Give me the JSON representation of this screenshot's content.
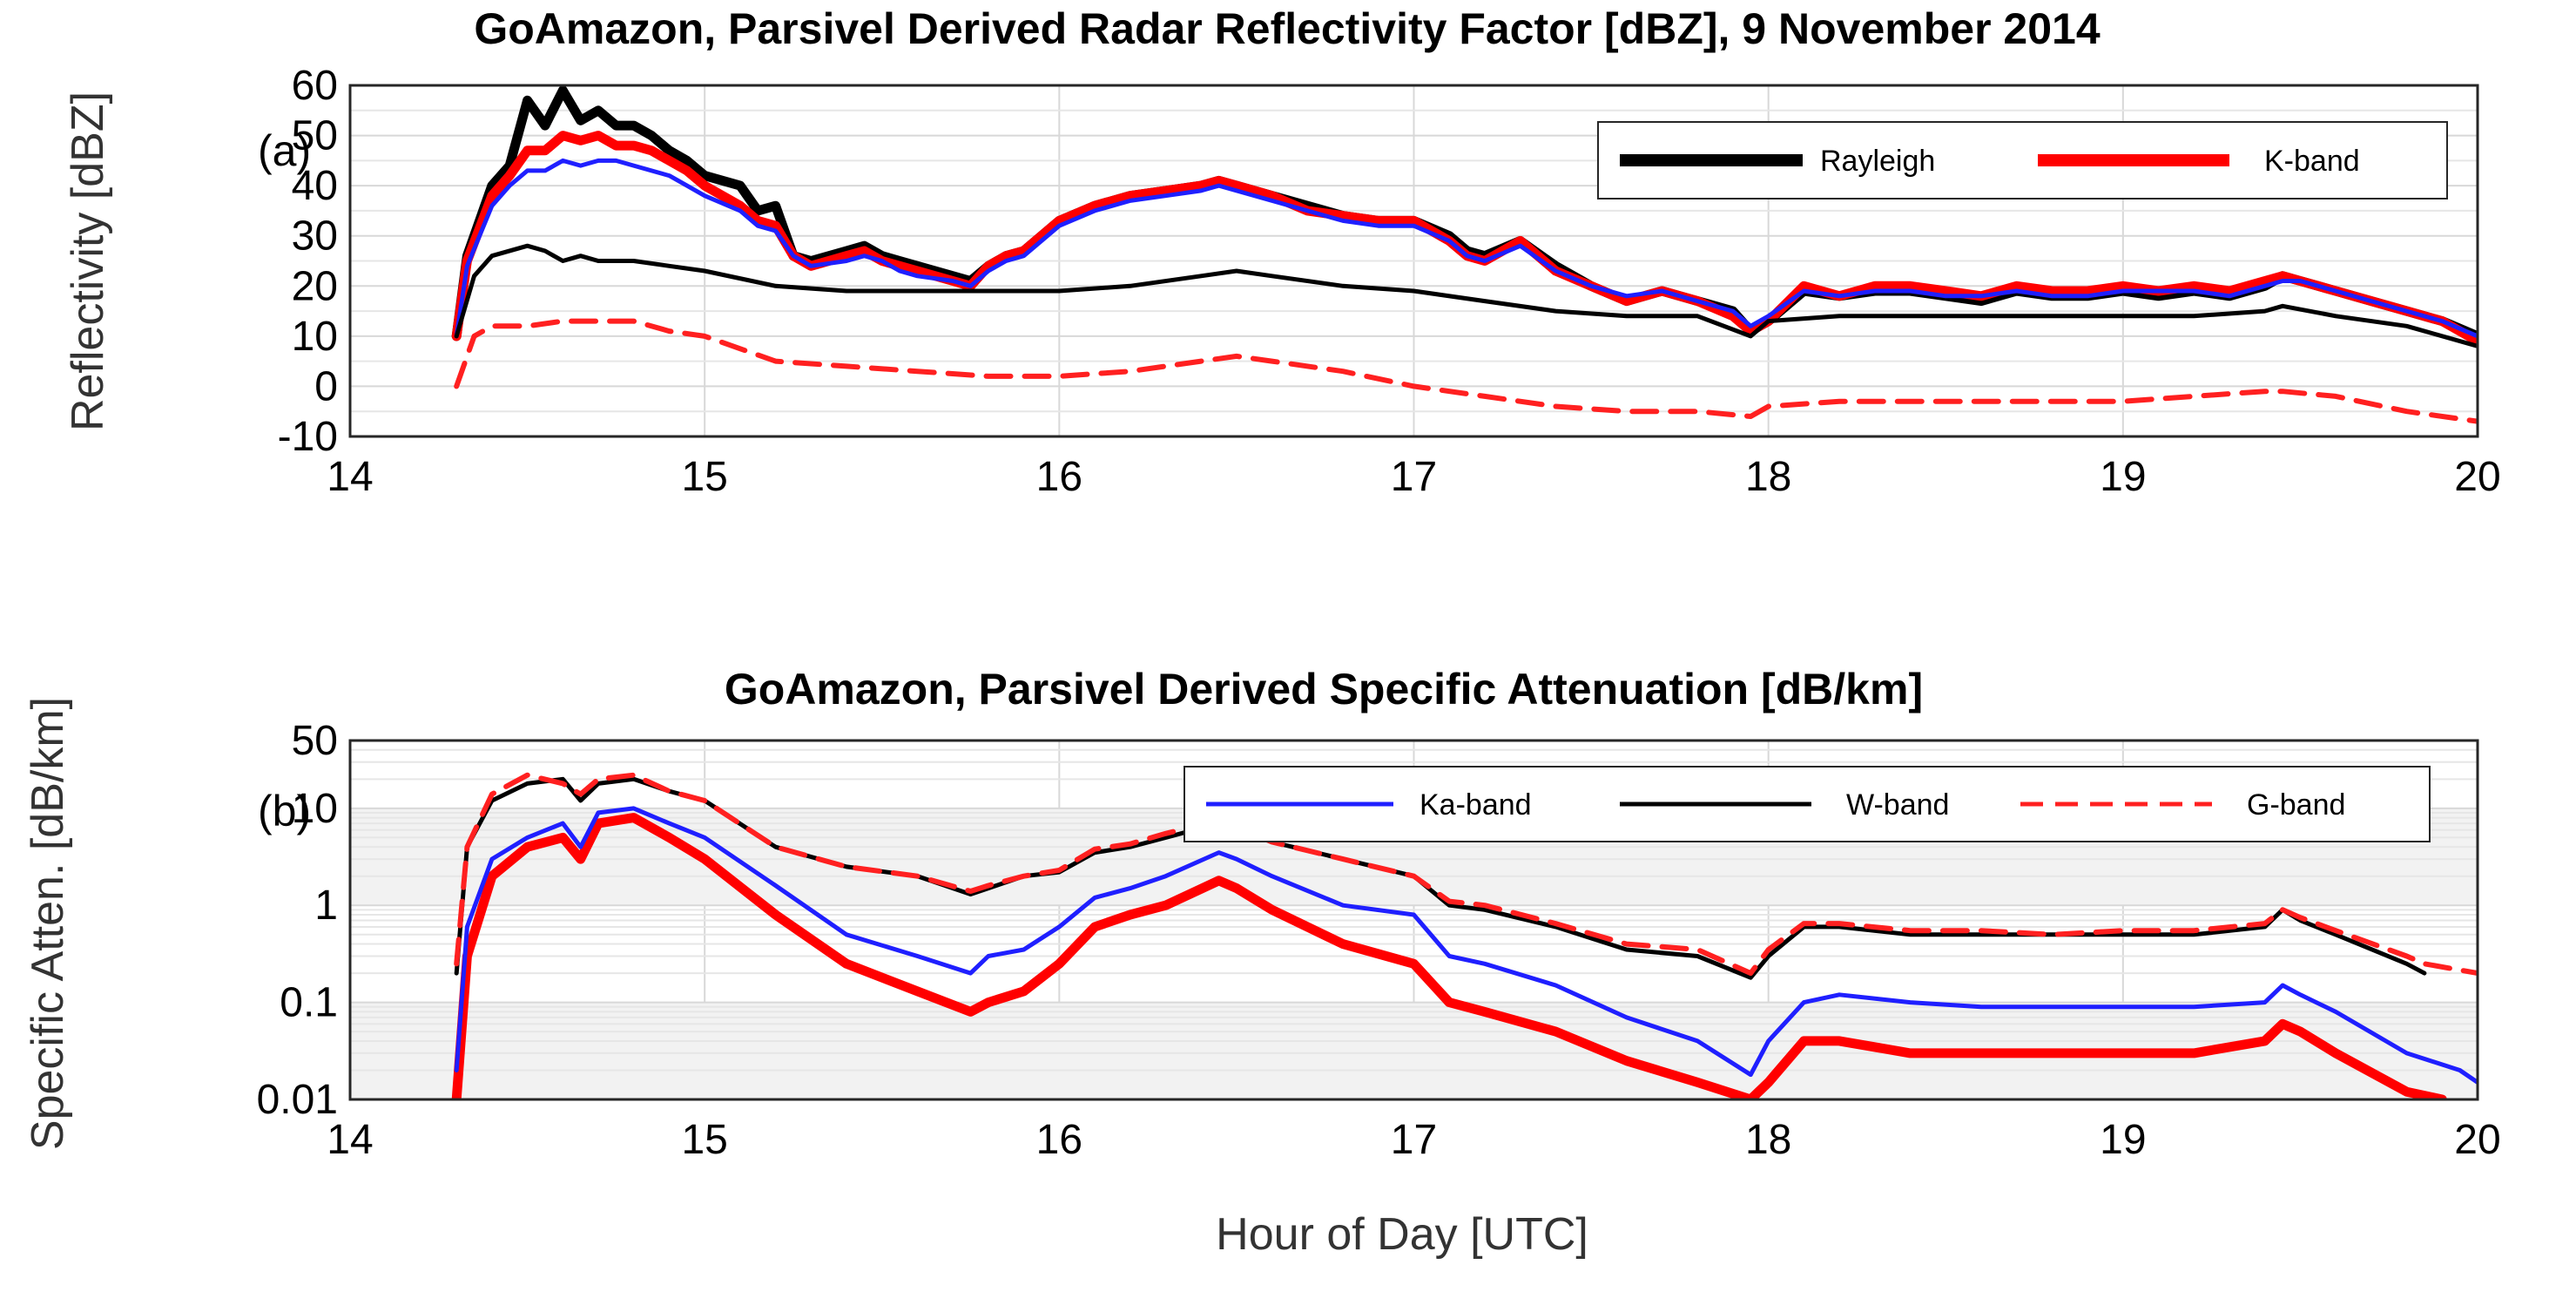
{
  "chart_data": [
    {
      "type": "line",
      "panel_label": "(a)",
      "title": "GoAmazon, Parsivel Derived Radar Reflectivity Factor [dBZ], 9 November 2014",
      "xlabel": "",
      "ylabel": "Reflectivity [dBZ]",
      "xlim": [
        14,
        20
      ],
      "ylim": [
        -10,
        60
      ],
      "xticks": [
        "14",
        "15",
        "16",
        "17",
        "18",
        "19",
        "20"
      ],
      "yticks": [
        "-10",
        "0",
        "10",
        "20",
        "30",
        "40",
        "50",
        "60"
      ],
      "grid": true,
      "legend": {
        "position": "top-right",
        "entries": [
          "Rayleigh",
          "K-band"
        ]
      },
      "series": [
        {
          "name": "Rayleigh",
          "color": "#000000",
          "style": "solid-thick",
          "x": [
            14.3,
            14.33,
            14.4,
            14.45,
            14.5,
            14.55,
            14.6,
            14.65,
            14.7,
            14.75,
            14.8,
            14.85,
            14.9,
            14.95,
            15.0,
            15.1,
            15.15,
            15.2,
            15.25,
            15.3,
            15.4,
            15.45,
            15.5,
            15.55,
            15.6,
            15.7,
            15.75,
            15.8,
            15.85,
            15.9,
            16.0,
            16.1,
            16.2,
            16.3,
            16.4,
            16.45,
            16.5,
            16.6,
            16.7,
            16.8,
            16.9,
            17.0,
            17.1,
            17.15,
            17.2,
            17.3,
            17.4,
            17.5,
            17.6,
            17.7,
            17.8,
            17.9,
            17.95,
            18.0,
            18.1,
            18.2,
            18.3,
            18.4,
            18.5,
            18.6,
            18.7,
            18.8,
            18.9,
            19.0,
            19.1,
            19.2,
            19.3,
            19.4,
            19.45,
            19.5,
            19.6,
            19.7,
            19.8,
            19.9,
            20.0
          ],
          "values": [
            10,
            26,
            40,
            44,
            57,
            52,
            59,
            53,
            55,
            52,
            52,
            50,
            47,
            45,
            42,
            40,
            35,
            36,
            26,
            25,
            27,
            28,
            26,
            25,
            24,
            22,
            21,
            24,
            26,
            27,
            33,
            36,
            38,
            39,
            40,
            41,
            40,
            38,
            36,
            34,
            33,
            33,
            30,
            27,
            26,
            29,
            24,
            20,
            17,
            19,
            17,
            15,
            11,
            13,
            19,
            18,
            19,
            19,
            18,
            17,
            19,
            18,
            18,
            19,
            18,
            19,
            18,
            20,
            22,
            21,
            19,
            17,
            15,
            13,
            10
          ]
        },
        {
          "name": "K-band",
          "color": "#ff0000",
          "style": "solid-thick",
          "x": [
            14.3,
            14.33,
            14.4,
            14.45,
            14.5,
            14.55,
            14.6,
            14.65,
            14.7,
            14.75,
            14.8,
            14.85,
            14.9,
            14.95,
            15.0,
            15.1,
            15.15,
            15.2,
            15.25,
            15.3,
            15.4,
            15.45,
            15.5,
            15.55,
            15.6,
            15.7,
            15.75,
            15.8,
            15.85,
            15.9,
            16.0,
            16.1,
            16.2,
            16.3,
            16.4,
            16.45,
            16.5,
            16.6,
            16.7,
            16.8,
            16.9,
            17.0,
            17.1,
            17.15,
            17.2,
            17.3,
            17.4,
            17.5,
            17.6,
            17.7,
            17.8,
            17.9,
            17.95,
            18.0,
            18.1,
            18.2,
            18.3,
            18.4,
            18.5,
            18.6,
            18.7,
            18.8,
            18.9,
            19.0,
            19.1,
            19.2,
            19.3,
            19.4,
            19.45,
            19.5,
            19.6,
            19.7,
            19.8,
            19.9,
            20.0
          ],
          "values": [
            10,
            25,
            38,
            42,
            47,
            47,
            50,
            49,
            50,
            48,
            48,
            47,
            45,
            43,
            40,
            36,
            33,
            32,
            26,
            24,
            26,
            27,
            25,
            24,
            23,
            21,
            20,
            24,
            26,
            27,
            33,
            36,
            38,
            39,
            40,
            41,
            40,
            38,
            35,
            34,
            33,
            33,
            29,
            26,
            25,
            29,
            23,
            20,
            17,
            19,
            17,
            14,
            11,
            13,
            20,
            18,
            20,
            20,
            19,
            18,
            20,
            19,
            19,
            20,
            19,
            20,
            19,
            21,
            22,
            21,
            19,
            17,
            15,
            13,
            9
          ]
        },
        {
          "name": "Ka-band",
          "color": "#1f1fff",
          "style": "solid",
          "x": [
            14.3,
            14.33,
            14.4,
            14.45,
            14.5,
            14.55,
            14.6,
            14.65,
            14.7,
            14.75,
            14.8,
            14.85,
            14.9,
            14.95,
            15.0,
            15.1,
            15.15,
            15.2,
            15.25,
            15.3,
            15.4,
            15.45,
            15.5,
            15.55,
            15.6,
            15.7,
            15.75,
            15.8,
            15.85,
            15.9,
            16.0,
            16.1,
            16.2,
            16.3,
            16.4,
            16.45,
            16.5,
            16.6,
            16.7,
            16.8,
            16.9,
            17.0,
            17.1,
            17.15,
            17.2,
            17.3,
            17.4,
            17.5,
            17.6,
            17.7,
            17.8,
            17.9,
            17.95,
            18.0,
            18.1,
            18.2,
            18.3,
            18.4,
            18.5,
            18.6,
            18.7,
            18.8,
            18.9,
            19.0,
            19.1,
            19.2,
            19.3,
            19.4,
            19.45,
            19.5,
            19.6,
            19.7,
            19.8,
            19.9,
            20.0
          ],
          "values": [
            10,
            24,
            36,
            40,
            43,
            43,
            45,
            44,
            45,
            45,
            44,
            43,
            42,
            40,
            38,
            35,
            32,
            31,
            26,
            24,
            25,
            26,
            25,
            23,
            22,
            21,
            20,
            23,
            25,
            26,
            32,
            35,
            37,
            38,
            39,
            40,
            39,
            37,
            35,
            33,
            32,
            32,
            29,
            26,
            25,
            28,
            23,
            20,
            18,
            19,
            17,
            15,
            12,
            14,
            19,
            18,
            19,
            19,
            18,
            18,
            19,
            18,
            18,
            19,
            19,
            19,
            18,
            20,
            21,
            21,
            19,
            17,
            15,
            13,
            10
          ]
        },
        {
          "name": "W-band",
          "color": "#000000",
          "style": "solid",
          "x": [
            14.3,
            14.35,
            14.4,
            14.5,
            14.55,
            14.6,
            14.65,
            14.7,
            14.8,
            14.9,
            15.0,
            15.2,
            15.4,
            15.6,
            15.8,
            16.0,
            16.2,
            16.4,
            16.5,
            16.6,
            16.8,
            17.0,
            17.2,
            17.4,
            17.6,
            17.8,
            17.95,
            18.0,
            18.2,
            18.4,
            18.6,
            18.8,
            19.0,
            19.2,
            19.4,
            19.45,
            19.6,
            19.8,
            20.0
          ],
          "values": [
            10,
            22,
            26,
            28,
            27,
            25,
            26,
            25,
            25,
            24,
            23,
            20,
            19,
            19,
            19,
            19,
            20,
            22,
            23,
            22,
            20,
            19,
            17,
            15,
            14,
            14,
            10,
            13,
            14,
            14,
            14,
            14,
            14,
            14,
            15,
            16,
            14,
            12,
            8
          ]
        },
        {
          "name": "G-band",
          "color": "#ff2020",
          "style": "dashed",
          "x": [
            14.3,
            14.35,
            14.4,
            14.5,
            14.6,
            14.7,
            14.8,
            14.9,
            15.0,
            15.2,
            15.4,
            15.6,
            15.8,
            16.0,
            16.2,
            16.4,
            16.5,
            16.6,
            16.8,
            17.0,
            17.2,
            17.4,
            17.6,
            17.8,
            17.95,
            18.0,
            18.2,
            18.4,
            18.6,
            18.8,
            19.0,
            19.2,
            19.4,
            19.45,
            19.6,
            19.8,
            20.0
          ],
          "values": [
            0,
            10,
            12,
            12,
            13,
            13,
            13,
            11,
            10,
            5,
            4,
            3,
            2,
            2,
            3,
            5,
            6,
            5,
            3,
            0,
            -2,
            -4,
            -5,
            -5,
            -6,
            -4,
            -3,
            -3,
            -3,
            -3,
            -3,
            -2,
            -1,
            -1,
            -2,
            -5,
            -7
          ]
        }
      ]
    },
    {
      "type": "line",
      "panel_label": "(b)",
      "title": "GoAmazon, Parsivel Derived Specific Attenuation [dB/km]",
      "xlabel": "Hour of Day [UTC]",
      "ylabel": "Specific Atten. [dB/km]",
      "xlim": [
        14,
        20
      ],
      "ylim": [
        0.01,
        50
      ],
      "yscale": "log",
      "xticks": [
        "14",
        "15",
        "16",
        "17",
        "18",
        "19",
        "20"
      ],
      "yticks": [
        "0.01",
        "0.1",
        "1",
        "10",
        "50"
      ],
      "ytick_values": [
        0.01,
        0.1,
        1,
        10,
        50
      ],
      "grid": true,
      "legend": {
        "position": "top-right",
        "entries": [
          "Ka-band",
          "W-band",
          "G-band"
        ]
      },
      "series": [
        {
          "name": "Ka-band",
          "color": "#1f1fff",
          "style": "solid",
          "x": [
            14.3,
            14.33,
            14.4,
            14.5,
            14.6,
            14.65,
            14.7,
            14.8,
            14.9,
            15.0,
            15.2,
            15.4,
            15.6,
            15.75,
            15.8,
            15.9,
            16.0,
            16.1,
            16.2,
            16.3,
            16.45,
            16.5,
            16.6,
            16.8,
            17.0,
            17.1,
            17.2,
            17.4,
            17.6,
            17.8,
            17.95,
            18.0,
            18.1,
            18.2,
            18.4,
            18.6,
            18.8,
            19.0,
            19.2,
            19.4,
            19.45,
            19.5,
            19.6,
            19.8,
            19.95,
            20.0
          ],
          "values": [
            0.02,
            0.6,
            3,
            5,
            7,
            4,
            9,
            10,
            7,
            5,
            1.6,
            0.5,
            0.3,
            0.2,
            0.3,
            0.35,
            0.6,
            1.2,
            1.5,
            2.0,
            3.5,
            3.0,
            2.0,
            1.0,
            0.8,
            0.3,
            0.25,
            0.15,
            0.07,
            0.04,
            0.018,
            0.04,
            0.1,
            0.12,
            0.1,
            0.09,
            0.09,
            0.09,
            0.09,
            0.1,
            0.15,
            0.12,
            0.08,
            0.03,
            0.02,
            0.015
          ]
        },
        {
          "name": "W-band",
          "color": "#000000",
          "style": "solid",
          "x": [
            14.3,
            14.33,
            14.4,
            14.5,
            14.6,
            14.65,
            14.7,
            14.8,
            14.9,
            15.0,
            15.2,
            15.4,
            15.6,
            15.75,
            15.8,
            15.9,
            16.0,
            16.1,
            16.2,
            16.3,
            16.45,
            16.5,
            16.6,
            16.8,
            17.0,
            17.1,
            17.2,
            17.4,
            17.6,
            17.8,
            17.95,
            18.0,
            18.1,
            18.2,
            18.4,
            18.6,
            18.8,
            19.0,
            19.2,
            19.4,
            19.45,
            19.5,
            19.6,
            19.8,
            19.85
          ],
          "values": [
            0.2,
            4,
            12,
            18,
            20,
            12,
            18,
            20,
            15,
            12,
            4,
            2.5,
            2,
            1.3,
            1.5,
            2.0,
            2.2,
            3.5,
            4.0,
            5.0,
            7.0,
            6.0,
            4.5,
            3.0,
            2.0,
            1.0,
            0.9,
            0.6,
            0.35,
            0.3,
            0.18,
            0.3,
            0.6,
            0.6,
            0.5,
            0.5,
            0.5,
            0.5,
            0.5,
            0.6,
            0.9,
            0.7,
            0.5,
            0.25,
            0.2
          ]
        },
        {
          "name": "G-band",
          "color": "#ff2020",
          "style": "dashed",
          "x": [
            14.3,
            14.33,
            14.4,
            14.5,
            14.6,
            14.65,
            14.7,
            14.8,
            14.9,
            15.0,
            15.2,
            15.4,
            15.6,
            15.75,
            15.8,
            15.9,
            16.0,
            16.1,
            16.2,
            16.3,
            16.45,
            16.5,
            16.6,
            16.8,
            17.0,
            17.1,
            17.2,
            17.4,
            17.6,
            17.8,
            17.95,
            18.0,
            18.1,
            18.2,
            18.4,
            18.6,
            18.8,
            19.0,
            19.2,
            19.4,
            19.45,
            19.5,
            19.6,
            19.8,
            19.85,
            20.0
          ],
          "values": [
            0.25,
            4,
            14,
            22,
            18,
            14,
            20,
            22,
            15,
            12,
            4,
            2.5,
            2,
            1.4,
            1.6,
            2.0,
            2.3,
            3.8,
            4.3,
            5.5,
            7.5,
            6.5,
            4.5,
            3.0,
            2.0,
            1.1,
            1.0,
            0.65,
            0.4,
            0.35,
            0.2,
            0.35,
            0.65,
            0.65,
            0.55,
            0.55,
            0.5,
            0.55,
            0.55,
            0.65,
            0.9,
            0.75,
            0.55,
            0.3,
            0.25,
            0.2
          ]
        },
        {
          "name": "K-band",
          "color": "#ff0000",
          "style": "solid-thick",
          "x": [
            14.3,
            14.33,
            14.4,
            14.5,
            14.6,
            14.65,
            14.7,
            14.8,
            14.9,
            15.0,
            15.2,
            15.4,
            15.6,
            15.75,
            15.8,
            15.9,
            16.0,
            16.1,
            16.2,
            16.3,
            16.45,
            16.5,
            16.6,
            16.8,
            17.0,
            17.1,
            17.2,
            17.4,
            17.6,
            17.8,
            17.95,
            18.0,
            18.1,
            18.2,
            18.4,
            18.6,
            18.8,
            19.0,
            19.2,
            19.4,
            19.45,
            19.5,
            19.6,
            19.8,
            19.9
          ],
          "values": [
            0.01,
            0.3,
            2,
            4,
            5,
            3,
            7,
            8,
            5,
            3,
            0.8,
            0.25,
            0.13,
            0.08,
            0.1,
            0.13,
            0.25,
            0.6,
            0.8,
            1.0,
            1.8,
            1.5,
            0.9,
            0.4,
            0.25,
            0.1,
            0.08,
            0.05,
            0.025,
            0.015,
            0.01,
            0.015,
            0.04,
            0.04,
            0.03,
            0.03,
            0.03,
            0.03,
            0.03,
            0.04,
            0.06,
            0.05,
            0.03,
            0.012,
            0.01
          ]
        }
      ]
    }
  ]
}
